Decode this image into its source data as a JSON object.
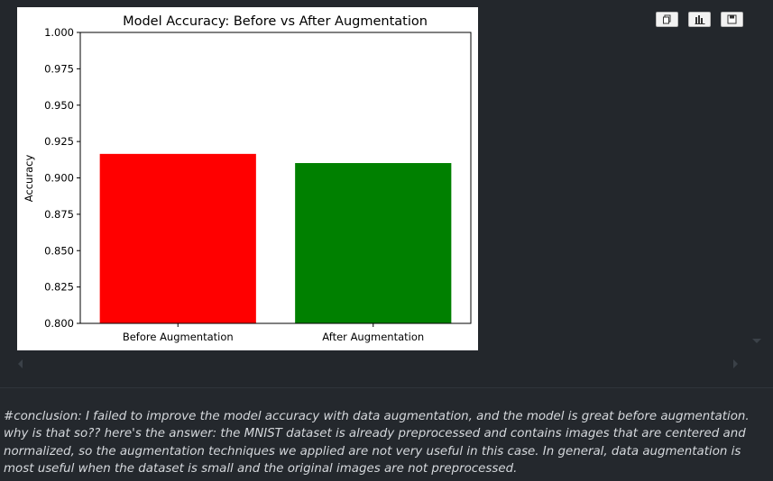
{
  "chart_data": {
    "type": "bar",
    "title": "Model Accuracy: Before vs After Augmentation",
    "xlabel": "",
    "ylabel": "Accuracy",
    "categories": [
      "Before Augmentation",
      "After Augmentation"
    ],
    "values": [
      0.9165,
      0.9102
    ],
    "colors": [
      "#ff0000",
      "#008000"
    ],
    "ylim": [
      0.8,
      1.0
    ],
    "yticks": [
      "0.800",
      "0.825",
      "0.850",
      "0.875",
      "0.900",
      "0.925",
      "0.950",
      "0.975",
      "1.000"
    ],
    "grid": false
  },
  "toolbar": {
    "icons": [
      "copy-icon",
      "chart-icon",
      "save-icon"
    ]
  },
  "conclusion_text": "#conclusion: I failed to improve the model accuracy with data augmentation, and the model is great before augmentation. why is that so?? here's the answer: the MNIST dataset is already preprocessed and contains images that are centered and normalized, so the augmentation techniques we applied are not very useful in this case. In general, data augmentation is most useful when the dataset is small and the original images are not preprocessed."
}
